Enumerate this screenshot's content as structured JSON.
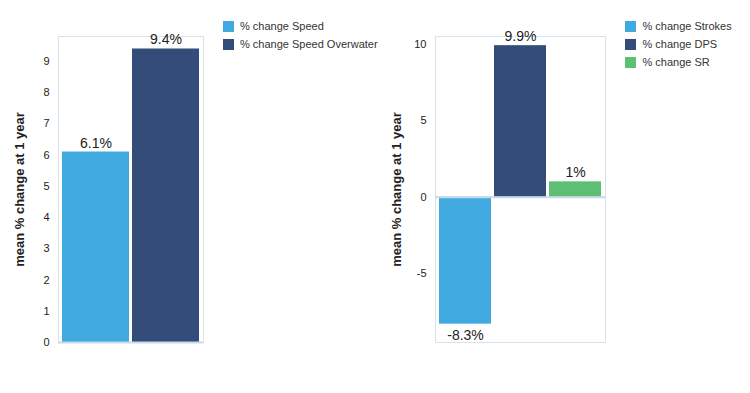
{
  "chart_data": [
    {
      "type": "bar",
      "y_label": "mean % change at 1 year",
      "categories": [
        "% change Speed",
        "% change Speed Overwater"
      ],
      "values": [
        6.1,
        9.4
      ],
      "value_labels": [
        "6.1%",
        "9.4%"
      ],
      "colors": [
        "#40a9e0",
        "#344c7a"
      ],
      "ylim": [
        0,
        9.8
      ],
      "yticks": [
        0,
        1,
        2,
        3,
        4,
        5,
        6,
        7,
        8,
        9
      ],
      "data_labels": true,
      "legend": "right",
      "tick_labels": "y"
    },
    {
      "type": "bar",
      "y_label": "mean % change at 1 year",
      "categories": [
        "% change Strokes",
        "% change DPS",
        "% change SR"
      ],
      "values": [
        -8.3,
        9.9,
        1
      ],
      "value_labels": [
        "-8.3%",
        "9.9%",
        "1%"
      ],
      "colors": [
        "#40a9e0",
        "#344c7a",
        "#5dbf74"
      ],
      "ylim": [
        -9.5,
        10.5
      ],
      "yticks": [
        -5,
        0,
        5,
        10
      ],
      "data_labels": true,
      "legend": "right",
      "tick_labels": "y"
    }
  ]
}
